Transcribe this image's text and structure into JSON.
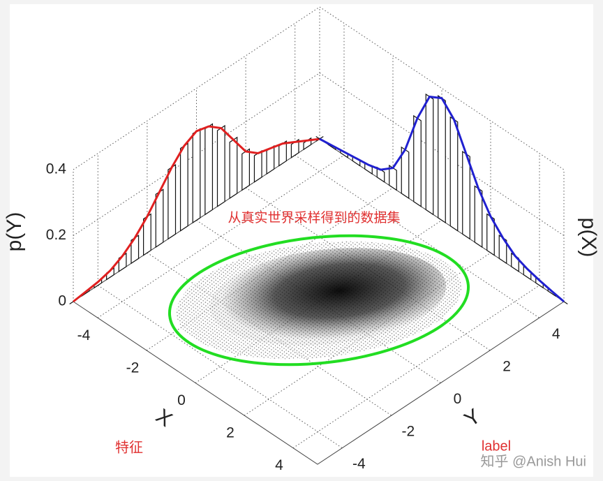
{
  "chart_data": {
    "type": "joint-density",
    "annotation": "从真实世界采样得到的数据集",
    "x_label": "X",
    "y_label": "Y",
    "py_label": "p(Y)",
    "px_label": "p(X)",
    "feature_note": "特征",
    "label_note": "label",
    "xlim": [
      -5,
      5
    ],
    "xticks": [
      -4,
      -2,
      0,
      2,
      4
    ],
    "ylim": [
      -5,
      5
    ],
    "yticks": [
      -4,
      -2,
      0,
      2,
      4
    ],
    "zlim": [
      0,
      0.4
    ],
    "zticks": [
      0,
      0.2,
      0.4
    ],
    "ellipse_color": "#22dd22",
    "series": [
      {
        "axis": "y",
        "color": "#e02020",
        "x": [
          -5,
          -4.5,
          -4,
          -3.5,
          -3,
          -2.5,
          -2,
          -1.5,
          -1,
          -0.5,
          0,
          0.5,
          1,
          1.5,
          2,
          2.5,
          3,
          3.5,
          4,
          4.5,
          5
        ],
        "values": [
          0,
          0.005,
          0.01,
          0.02,
          0.04,
          0.07,
          0.11,
          0.16,
          0.21,
          0.25,
          0.27,
          0.26,
          0.23,
          0.17,
          0.11,
          0.08,
          0.07,
          0.06,
          0.04,
          0.02,
          0
        ]
      },
      {
        "axis": "x",
        "color": "#2020d0",
        "x": [
          -5,
          -4.5,
          -4,
          -3.5,
          -3,
          -2.5,
          -2,
          -1.5,
          -1,
          -0.5,
          0,
          0.5,
          1,
          1.5,
          2,
          2.5,
          3,
          3.5,
          4,
          4.5,
          5
        ],
        "values": [
          0,
          0.005,
          0.01,
          0.015,
          0.02,
          0.03,
          0.06,
          0.14,
          0.26,
          0.35,
          0.37,
          0.33,
          0.25,
          0.17,
          0.11,
          0.07,
          0.04,
          0.025,
          0.015,
          0.007,
          0
        ]
      }
    ]
  },
  "watermark": "知乎 @Anish Hui"
}
